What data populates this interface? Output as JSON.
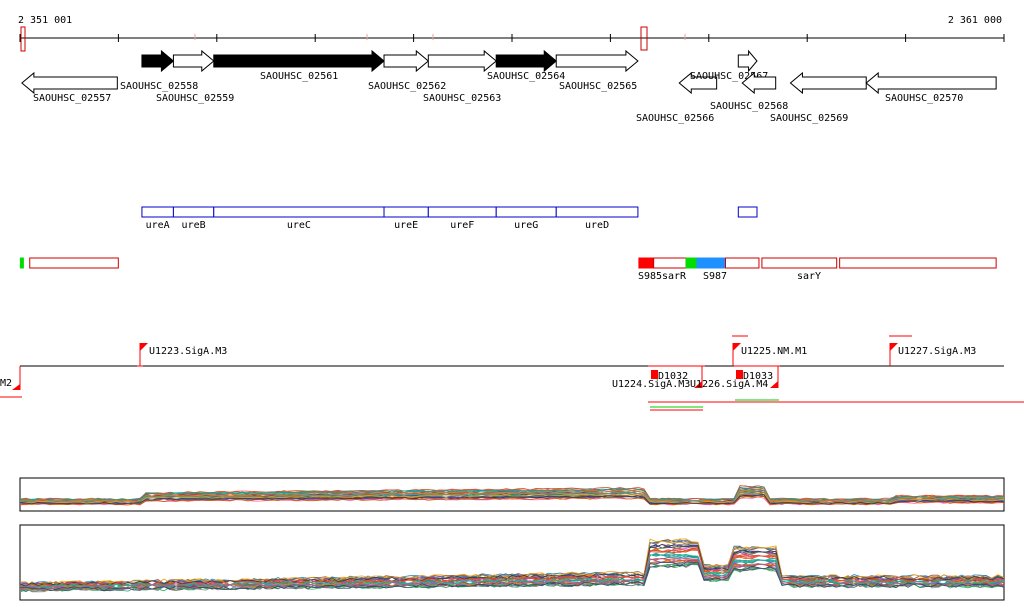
{
  "coordinates": {
    "start_label": "2 351 001",
    "end_label": "2 361 000",
    "start_bp": 2351001,
    "end_bp": 2361000
  },
  "colors": {
    "axis": "#000000",
    "gene_fill": "#000000",
    "gene_outline": "#000000",
    "operon_box": "#0000cc",
    "srna_box": "#cc0000",
    "srna_red": "#ff0000",
    "srna_green": "#00dd00",
    "srna_blue": "#1e90ff",
    "promoter": "#ff0000",
    "green_line": "#00cc00"
  },
  "genes": [
    {
      "id": "SAOUHSC_02557",
      "start": 2351020,
      "end": 2351990,
      "strand": "-",
      "filled": false,
      "row": 1
    },
    {
      "id": "SAOUHSC_02558",
      "start": 2352240,
      "end": 2352560,
      "strand": "+",
      "filled": true,
      "row": 0
    },
    {
      "id": "SAOUHSC_02559",
      "start": 2352560,
      "end": 2352970,
      "strand": "+",
      "filled": false,
      "row": 0
    },
    {
      "id": "SAOUHSC_02561",
      "start": 2352970,
      "end": 2354700,
      "strand": "+",
      "filled": true,
      "row": 0
    },
    {
      "id": "SAOUHSC_02562",
      "start": 2354700,
      "end": 2355150,
      "strand": "+",
      "filled": false,
      "row": 0
    },
    {
      "id": "SAOUHSC_02563",
      "start": 2355150,
      "end": 2355840,
      "strand": "+",
      "filled": false,
      "row": 0
    },
    {
      "id": "SAOUHSC_02564",
      "start": 2355840,
      "end": 2356450,
      "strand": "+",
      "filled": true,
      "row": 0
    },
    {
      "id": "SAOUHSC_02565",
      "start": 2356450,
      "end": 2357280,
      "strand": "+",
      "filled": false,
      "row": 0
    },
    {
      "id": "SAOUHSC_02566",
      "start": 2357700,
      "end": 2358080,
      "strand": "-",
      "filled": false,
      "row": 1
    },
    {
      "id": "SAOUHSC_02567",
      "start": 2358300,
      "end": 2358490,
      "strand": "+",
      "filled": false,
      "row": 0
    },
    {
      "id": "SAOUHSC_02568",
      "start": 2358340,
      "end": 2358680,
      "strand": "-",
      "filled": false,
      "row": 1
    },
    {
      "id": "SAOUHSC_02569",
      "start": 2358830,
      "end": 2359600,
      "strand": "-",
      "filled": false,
      "row": 1
    },
    {
      "id": "SAOUHSC_02570",
      "start": 2359600,
      "end": 2360920,
      "strand": "-",
      "filled": false,
      "row": 1
    }
  ],
  "operons": [
    {
      "label": "ureA",
      "start": 2352240,
      "end": 2352560
    },
    {
      "label": "ureB",
      "start": 2352560,
      "end": 2352970
    },
    {
      "label": "ureC",
      "start": 2352970,
      "end": 2354700
    },
    {
      "label": "ureE",
      "start": 2354700,
      "end": 2355150
    },
    {
      "label": "ureF",
      "start": 2355150,
      "end": 2355840
    },
    {
      "label": "ureG",
      "start": 2355840,
      "end": 2356450
    },
    {
      "label": "ureD",
      "start": 2356450,
      "end": 2357280
    },
    {
      "label": "",
      "start": 2358300,
      "end": 2358490
    }
  ],
  "srnas": [
    {
      "label": "",
      "start": 2351005,
      "end": 2351030,
      "kind": "green"
    },
    {
      "label": "",
      "start": 2351100,
      "end": 2352000,
      "kind": "outline"
    },
    {
      "label": "S985",
      "start": 2357290,
      "end": 2357440,
      "kind": "red"
    },
    {
      "label": "sarR",
      "start": 2357440,
      "end": 2357770,
      "kind": "outline"
    },
    {
      "label": "",
      "start": 2357770,
      "end": 2357880,
      "kind": "green"
    },
    {
      "label": "S987",
      "start": 2357880,
      "end": 2358170,
      "kind": "blue"
    },
    {
      "label": "",
      "start": 2358170,
      "end": 2358510,
      "kind": "outline"
    },
    {
      "label": "sarY",
      "start": 2358540,
      "end": 2359300,
      "kind": "outline"
    },
    {
      "label": "",
      "start": 2359330,
      "end": 2360920,
      "kind": "outline"
    }
  ],
  "promoters": [
    {
      "label": "M2",
      "row": "up"
    },
    {
      "label": "U1223.SigA.M3",
      "row": "up"
    },
    {
      "label": "D1032",
      "row": "down"
    },
    {
      "label": "U1224.SigA.M3",
      "row": "down"
    },
    {
      "label": "U1225.NM.M1",
      "row": "up"
    },
    {
      "label": "U1226.SigA.M4",
      "row": "down"
    },
    {
      "label": "D1033",
      "row": "down"
    },
    {
      "label": "U1227.SigA.M3",
      "row": "up"
    }
  ]
}
